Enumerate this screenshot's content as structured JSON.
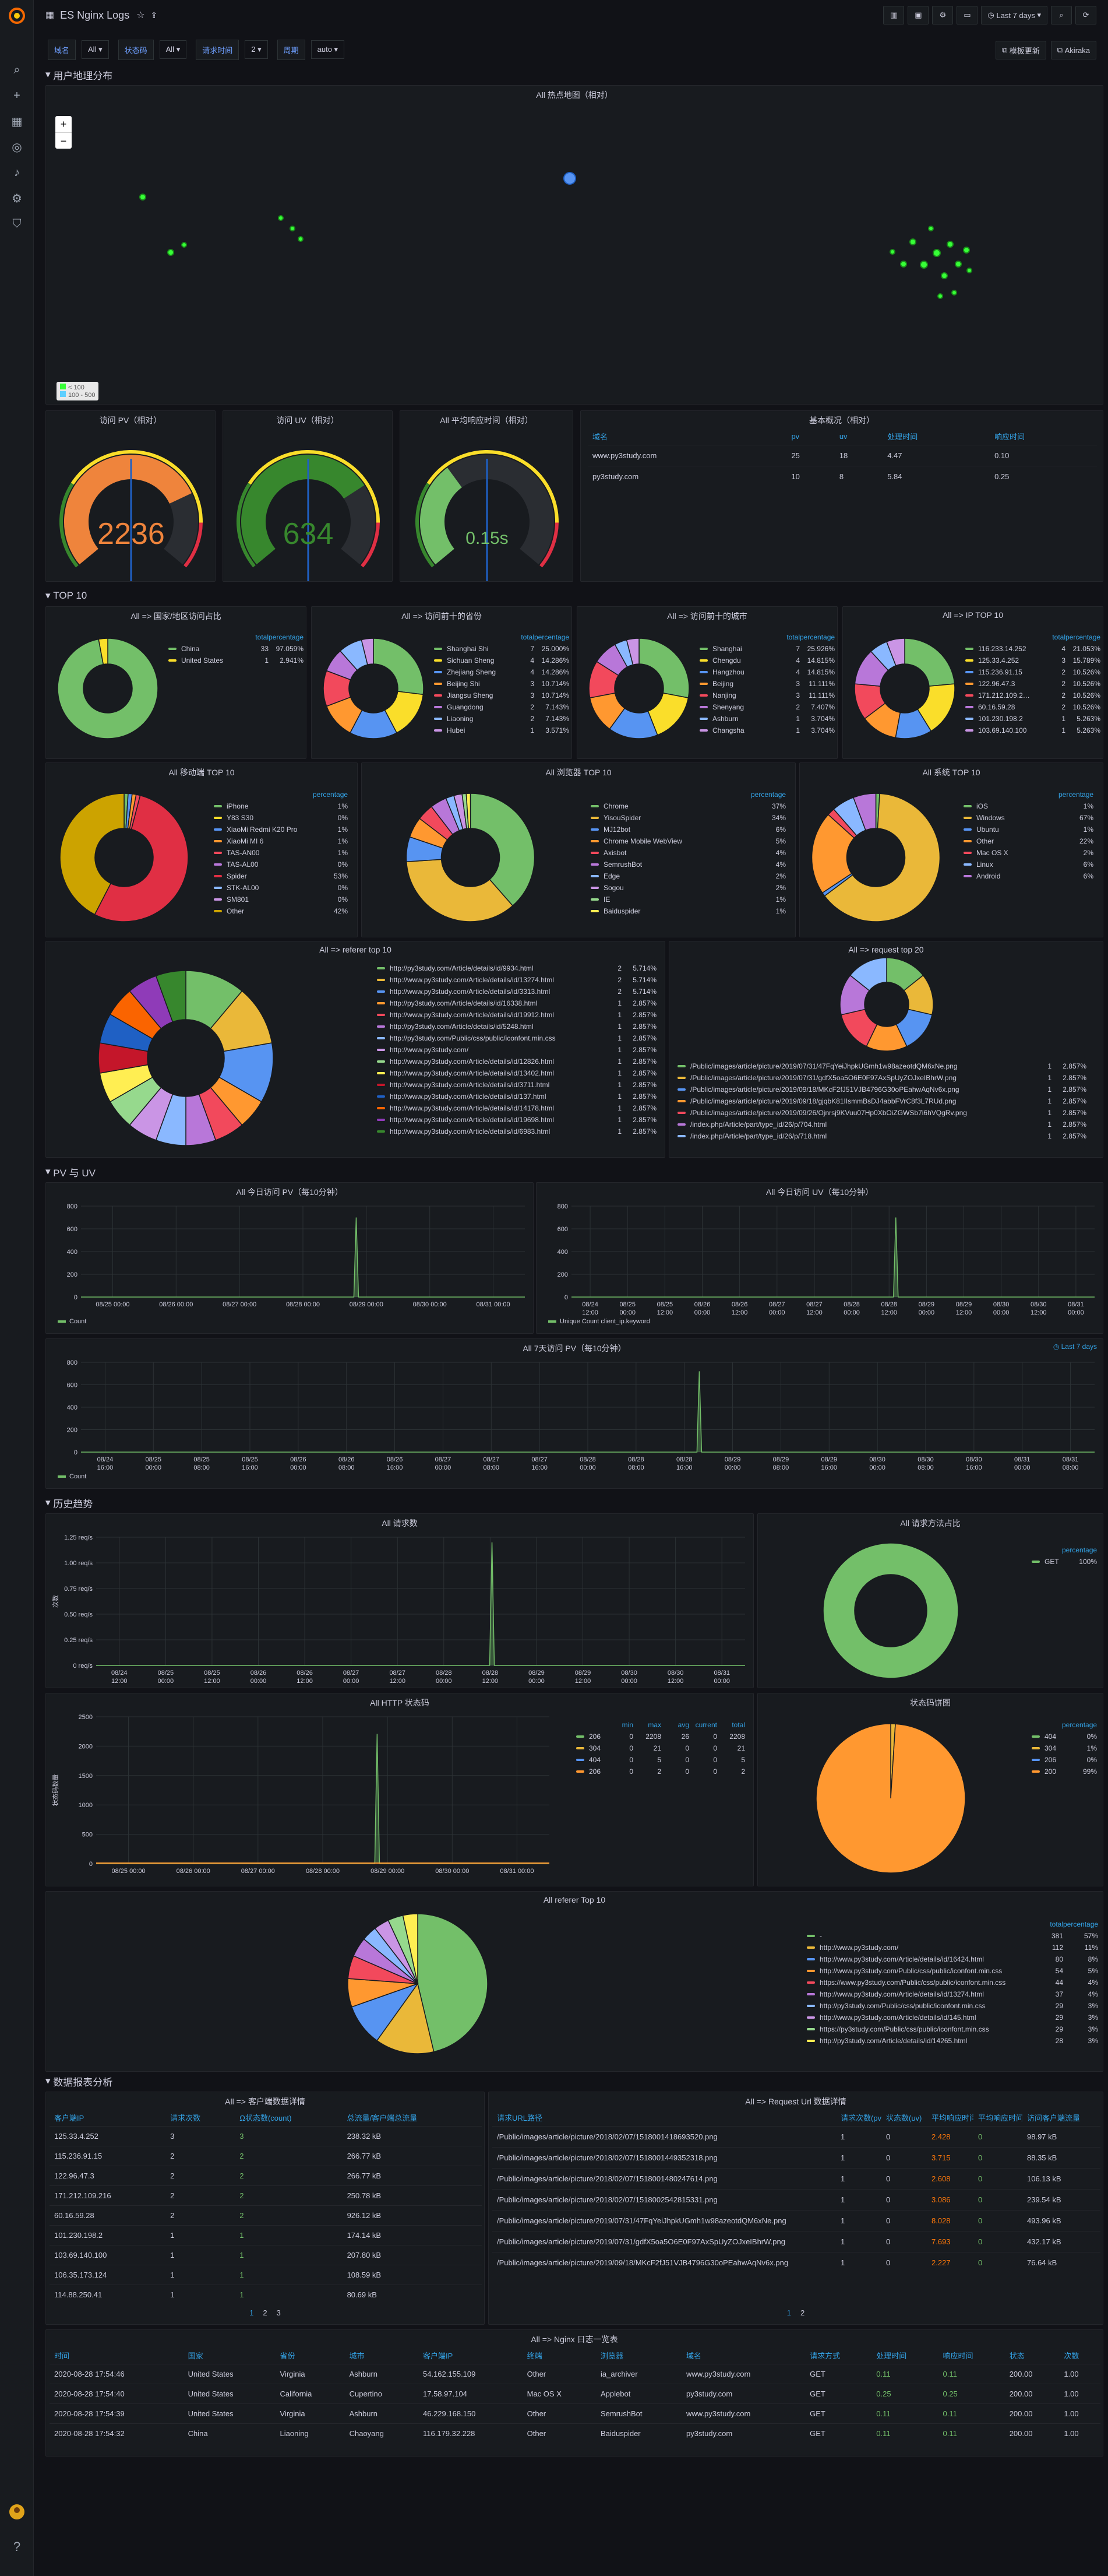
{
  "app": {
    "title": "ES Nginx Logs",
    "time_range": "Last 7 days",
    "btn_dash": "模板更新",
    "btn_akiraka": "Akiraka"
  },
  "sidebar": {
    "icons": [
      "grafana-logo-icon",
      "search-icon",
      "plus-icon",
      "dashboards-icon",
      "explore-icon",
      "alerting-icon",
      "config-icon",
      "shield-icon"
    ]
  },
  "variables": [
    {
      "label": "域名",
      "value": "All"
    },
    {
      "label": "状态码",
      "value": "All"
    },
    {
      "label": "请求时间",
      "value": "2"
    },
    {
      "label": "周期",
      "value": "auto"
    }
  ],
  "rows": {
    "geo": "用户地理分布",
    "top10": "TOP 10",
    "pvuv": "PV 与 UV",
    "history": "历史趋势",
    "report": "数据报表分析"
  },
  "map": {
    "title": "All 热点地图（相对）",
    "zoom_in": "+",
    "zoom_out": "−",
    "legend": [
      "< 100",
      "100 - 500"
    ]
  },
  "gauges": [
    {
      "title": "访问 PV（相对）",
      "value": "2236",
      "fraction": 0.75,
      "color": "#ef843c"
    },
    {
      "title": "访问 UV（相对）",
      "value": "634",
      "fraction": 0.72,
      "color": "#37872d"
    },
    {
      "title": "All 平均响应时间（相对）",
      "value": "0.15s",
      "fraction": 0.36,
      "color": "#73bf69"
    }
  ],
  "overview": {
    "title": "基本概况（相对）",
    "columns": [
      "域名",
      "pv",
      "uv",
      "处理时间",
      "响应时间"
    ],
    "rows": [
      [
        "www.py3study.com",
        "25",
        "18",
        "4.47",
        "0.10"
      ],
      [
        "py3study.com",
        "10",
        "8",
        "5.84",
        "0.25"
      ]
    ]
  },
  "pies_top10": [
    {
      "title": "All => 国家/地区访问占比",
      "cols": [
        "total",
        "percentage"
      ],
      "items": [
        [
          "China",
          "33",
          "97.059%",
          "#73bf69"
        ],
        [
          "United States",
          "1",
          "2.941%",
          "#fade2a"
        ]
      ]
    },
    {
      "title": "All => 访问前十的省份",
      "cols": [
        "total",
        "percentage"
      ],
      "items": [
        [
          "Shanghai Shi",
          "7",
          "25.000%",
          "#73bf69"
        ],
        [
          "Sichuan Sheng",
          "4",
          "14.286%",
          "#fade2a"
        ],
        [
          "Zhejiang Sheng",
          "4",
          "14.286%",
          "#5794f2"
        ],
        [
          "Beijing Shi",
          "3",
          "10.714%",
          "#ff9830"
        ],
        [
          "Jiangsu Sheng",
          "3",
          "10.714%",
          "#f2495c"
        ],
        [
          "Guangdong",
          "2",
          "7.143%",
          "#b877d9"
        ],
        [
          "Liaoning",
          "2",
          "7.143%",
          "#8ab8ff"
        ],
        [
          "Hubei",
          "1",
          "3.571%",
          "#ca95e5"
        ]
      ]
    },
    {
      "title": "All => 访问前十的城市",
      "cols": [
        "total",
        "percentage"
      ],
      "items": [
        [
          "Shanghai",
          "7",
          "25.926%",
          "#73bf69"
        ],
        [
          "Chengdu",
          "4",
          "14.815%",
          "#fade2a"
        ],
        [
          "Hangzhou",
          "4",
          "14.815%",
          "#5794f2"
        ],
        [
          "Beijing",
          "3",
          "11.111%",
          "#ff9830"
        ],
        [
          "Nanjing",
          "3",
          "11.111%",
          "#f2495c"
        ],
        [
          "Shenyang",
          "2",
          "7.407%",
          "#b877d9"
        ],
        [
          "Ashburn",
          "1",
          "3.704%",
          "#8ab8ff"
        ],
        [
          "Changsha",
          "1",
          "3.704%",
          "#ca95e5"
        ]
      ]
    },
    {
      "title": "All => IP TOP 10",
      "cols": [
        "total",
        "percentage"
      ],
      "items": [
        [
          "116.233.14.252",
          "4",
          "21.053%",
          "#73bf69"
        ],
        [
          "125.33.4.252",
          "3",
          "15.789%",
          "#fade2a"
        ],
        [
          "115.236.91.15",
          "2",
          "10.526%",
          "#5794f2"
        ],
        [
          "122.96.47.3",
          "2",
          "10.526%",
          "#ff9830"
        ],
        [
          "171.212.109.216",
          "2",
          "10.526%",
          "#f2495c"
        ],
        [
          "60.16.59.28",
          "2",
          "10.526%",
          "#b877d9"
        ],
        [
          "101.230.198.2",
          "1",
          "5.263%",
          "#8ab8ff"
        ],
        [
          "103.69.140.100",
          "1",
          "5.263%",
          "#ca95e5"
        ]
      ]
    }
  ],
  "pies_row3": [
    {
      "title": "All 移动端 TOP 10",
      "cols": [
        "percentage"
      ],
      "items": [
        [
          "iPhone",
          "1%",
          "#73bf69"
        ],
        [
          "Y83 S30",
          "0%",
          "#fade2a"
        ],
        [
          "XiaoMi Redmi K20 Pro",
          "1%",
          "#5794f2"
        ],
        [
          "XiaoMi MI 6",
          "1%",
          "#ff9830"
        ],
        [
          "TAS-AN00",
          "1%",
          "#f2495c"
        ],
        [
          "TAS-AL00",
          "0%",
          "#b877d9"
        ],
        [
          "Spider",
          "53%",
          "#e02f44"
        ],
        [
          "STK-AL00",
          "0%",
          "#8ab8ff"
        ],
        [
          "SM801",
          "0%",
          "#ca95e5"
        ],
        [
          "Other",
          "42%",
          "#cca300"
        ]
      ]
    },
    {
      "title": "All 浏览器 TOP 10",
      "cols": [
        "percentage"
      ],
      "items": [
        [
          "Chrome",
          "37%",
          "#73bf69"
        ],
        [
          "YisouSpider",
          "34%",
          "#eab839"
        ],
        [
          "MJ12bot",
          "6%",
          "#5794f2"
        ],
        [
          "Chrome Mobile WebView",
          "5%",
          "#ff9830"
        ],
        [
          "Axisbot",
          "4%",
          "#f2495c"
        ],
        [
          "SemrushBot",
          "4%",
          "#b877d9"
        ],
        [
          "Edge",
          "2%",
          "#8ab8ff"
        ],
        [
          "Sogou",
          "2%",
          "#ca95e5"
        ],
        [
          "IE",
          "1%",
          "#96d98d"
        ],
        [
          "Baiduspider",
          "1%",
          "#ffee52"
        ]
      ]
    },
    {
      "title": "All 系统 TOP 10",
      "cols": [
        "percentage"
      ],
      "items": [
        [
          "iOS",
          "1%",
          "#73bf69"
        ],
        [
          "Windows",
          "67%",
          "#eab839"
        ],
        [
          "Ubuntu",
          "1%",
          "#5794f2"
        ],
        [
          "Other",
          "22%",
          "#ff9830"
        ],
        [
          "Mac OS X",
          "2%",
          "#f2495c"
        ],
        [
          "Linux",
          "6%",
          "#8ab8ff"
        ],
        [
          "Android",
          "6%",
          "#b877d9"
        ]
      ]
    }
  ],
  "referer": {
    "title": "All => referer top 10",
    "items": [
      [
        "http://py3study.com/Article/details/id/9934.html",
        "2",
        "5.714%",
        "#73bf69"
      ],
      [
        "http://www.py3study.com/Article/details/id/13274.html",
        "2",
        "5.714%",
        "#eab839"
      ],
      [
        "http://www.py3study.com/Article/details/id/3313.html",
        "2",
        "5.714%",
        "#5794f2"
      ],
      [
        "http://py3study.com/Article/details/id/16338.html",
        "1",
        "2.857%",
        "#ff9830"
      ],
      [
        "http://www.py3study.com/Article/details/id/19912.html",
        "1",
        "2.857%",
        "#f2495c"
      ],
      [
        "http://py3study.com/Article/details/id/5248.html",
        "1",
        "2.857%",
        "#b877d9"
      ],
      [
        "http://py3study.com/Public/css/public/iconfont.min.css",
        "1",
        "2.857%",
        "#8ab8ff"
      ],
      [
        "http://www.py3study.com/",
        "1",
        "2.857%",
        "#ca95e5"
      ],
      [
        "http://www.py3study.com/Article/details/id/12826.html",
        "1",
        "2.857%",
        "#96d98d"
      ],
      [
        "http://www.py3study.com/Article/details/id/13402.html",
        "1",
        "2.857%",
        "#ffee52"
      ],
      [
        "http://www.py3study.com/Article/details/id/3711.html",
        "1",
        "2.857%",
        "#c4162a"
      ],
      [
        "http://www.py3study.com/Article/details/id/137.html",
        "1",
        "2.857%",
        "#1f60c4"
      ],
      [
        "http://www.py3study.com/Article/details/id/14178.html",
        "1",
        "2.857%",
        "#fa6400"
      ],
      [
        "http://www.py3study.com/Article/details/id/19698.html",
        "1",
        "2.857%",
        "#8f3bb8"
      ],
      [
        "http://www.py3study.com/Article/details/id/6983.html",
        "1",
        "2.857%",
        "#37872d"
      ]
    ]
  },
  "request_top": {
    "title": "All => request top 20",
    "items": [
      [
        "/Public/images/article/picture/2019/07/31/47FqYeiJhpkUGmh1w98azeotdQM6xNe.png",
        "1",
        "2.857%",
        "#73bf69"
      ],
      [
        "/Public/images/article/picture/2019/07/31/gdfX5oa5O6E0F97AxSpUyZOJxeIBhrW.png",
        "1",
        "2.857%",
        "#eab839"
      ],
      [
        "/Public/images/article/picture/2019/09/18/MKcF2fJ51VJB4796G30oPEahwAqNv6x.png",
        "1",
        "2.857%",
        "#5794f2"
      ],
      [
        "/Public/images/article/picture/2019/09/18/gjqbK81IIsmmBsDJ4abbFVrC8f3L7RUd.png",
        "1",
        "2.857%",
        "#ff9830"
      ],
      [
        "/Public/images/article/picture/2019/09/26/Ojnrsj9KVuu07Hp0XbOiZGWSb7i6hVQgRv.png",
        "1",
        "2.857%",
        "#f2495c"
      ],
      [
        "/index.php/Article/part/type_id/26/p/704.html",
        "1",
        "2.857%",
        "#b877d9"
      ],
      [
        "/index.php/Article/part/type_id/26/p/718.html",
        "1",
        "2.857%",
        "#8ab8ff"
      ]
    ]
  },
  "pv_today": {
    "title": "All 今日访问 PV（每10分钟）",
    "ymax": 800,
    "yticks": [
      0,
      200,
      400,
      600,
      800
    ],
    "xticks": [
      "08/25 00:00",
      "08/26 00:00",
      "08/27 00:00",
      "08/28 00:00",
      "08/29 00:00",
      "08/30 00:00",
      "08/31 00:00"
    ],
    "spike_pos": 0.62,
    "spike_value": 700,
    "legend": "Count"
  },
  "uv_today": {
    "title": "All 今日访问 UV（每10分钟）",
    "ymax": 800,
    "yticks": [
      0,
      200,
      400,
      600,
      800
    ],
    "xticks": [
      "08/24 12:00",
      "08/25 00:00",
      "08/25 12:00",
      "08/26 00:00",
      "08/26 12:00",
      "08/27 00:00",
      "08/27 12:00",
      "08/28 00:00",
      "08/28 12:00",
      "08/29 00:00",
      "08/29 12:00",
      "08/30 00:00",
      "08/30 12:00",
      "08/31 00:00"
    ],
    "spike_pos": 0.62,
    "spike_value": 700,
    "legend": "Unique Count client_ip.keyword"
  },
  "pv_7d": {
    "title": "All 7天访问 PV（每10分钟）",
    "badge": "Last 7 days",
    "ymax": 800,
    "yticks": [
      0,
      200,
      400,
      600,
      800
    ],
    "xticks": [
      "08/24 16:00",
      "08/25 00:00",
      "08/25 08:00",
      "08/25 16:00",
      "08/26 00:00",
      "08/26 08:00",
      "08/26 16:00",
      "08/27 00:00",
      "08/27 08:00",
      "08/27 16:00",
      "08/28 00:00",
      "08/28 08:00",
      "08/28 16:00",
      "08/29 00:00",
      "08/29 08:00",
      "08/29 16:00",
      "08/30 00:00",
      "08/30 08:00",
      "08/30 16:00",
      "08/31 00:00",
      "08/31 08:00"
    ],
    "spike_pos": 0.61,
    "spike_value": 720,
    "legend": "Count"
  },
  "req_count": {
    "title": "All 请求数",
    "ylabel": "次数",
    "ymax": 1.25,
    "ytick_labels": [
      "0 req/s",
      "0.25 req/s",
      "0.50 req/s",
      "0.75 req/s",
      "1.00 req/s",
      "1.25 req/s"
    ],
    "xticks": [
      "08/24 12:00",
      "08/25 00:00",
      "08/25 12:00",
      "08/26 00:00",
      "08/26 12:00",
      "08/27 00:00",
      "08/27 12:00",
      "08/28 00:00",
      "08/28 12:00",
      "08/29 00:00",
      "08/29 12:00",
      "08/30 00:00",
      "08/30 12:00",
      "08/31 00:00"
    ],
    "spike_pos": 0.61,
    "spike_value": 1.2
  },
  "method_pie": {
    "title": "All 请求方法占比",
    "cols": [
      "percentage"
    ],
    "items": [
      [
        "GET",
        "100%",
        "#73bf69"
      ]
    ]
  },
  "http_status": {
    "title": "All HTTP 状态码",
    "ylabel": "状态码数量",
    "ymax": 2500,
    "yticks": [
      0,
      500,
      1000,
      1500,
      2000,
      2500
    ],
    "xticks": [
      "08/25 00:00",
      "08/26 00:00",
      "08/27 00:00",
      "08/28 00:00",
      "08/29 00:00",
      "08/30 00:00",
      "08/31 00:00"
    ],
    "spike_pos": 0.62,
    "spike_value": 2208,
    "cols": [
      "min",
      "max",
      "avg",
      "current",
      "total"
    ],
    "series": [
      [
        "206",
        "0",
        "2208",
        "26",
        "0",
        "2208",
        "#73bf69"
      ],
      [
        "304",
        "0",
        "21",
        "0",
        "0",
        "21",
        "#eab839"
      ],
      [
        "404",
        "0",
        "5",
        "0",
        "0",
        "5",
        "#5794f2"
      ],
      [
        "206",
        "0",
        "2",
        "0",
        "0",
        "2",
        "#ff9830"
      ]
    ]
  },
  "status_pie": {
    "title": "状态码饼图",
    "cols": [
      "percentage"
    ],
    "items": [
      [
        "404",
        "0%",
        "#73bf69"
      ],
      [
        "304",
        "1%",
        "#eab839"
      ],
      [
        "206",
        "0%",
        "#5794f2"
      ],
      [
        "200",
        "99%",
        "#ff9830"
      ]
    ]
  },
  "referer_all": {
    "title": "All referer Top 10",
    "cols": [
      "total",
      "percentage"
    ],
    "items": [
      [
        "-",
        "381",
        "57%",
        "#73bf69"
      ],
      [
        "http://www.py3study.com/",
        "112",
        "11%",
        "#eab839"
      ],
      [
        "http://www.py3study.com/Article/details/id/16424.html",
        "80",
        "8%",
        "#5794f2"
      ],
      [
        "http://www.py3study.com/Public/css/public/iconfont.min.css",
        "54",
        "5%",
        "#ff9830"
      ],
      [
        "https://www.py3study.com/Public/css/public/iconfont.min.css",
        "44",
        "4%",
        "#f2495c"
      ],
      [
        "http://www.py3study.com/Article/details/id/13274.html",
        "37",
        "4%",
        "#b877d9"
      ],
      [
        "http://py3study.com/Public/css/public/iconfont.min.css",
        "29",
        "3%",
        "#8ab8ff"
      ],
      [
        "http://www.py3study.com/Article/details/id/145.html",
        "29",
        "3%",
        "#ca95e5"
      ],
      [
        "https://py3study.com/Public/css/public/iconfont.min.css",
        "29",
        "3%",
        "#96d98d"
      ],
      [
        "http://py3study.com/Article/details/id/14265.html",
        "28",
        "3%",
        "#ffee52"
      ]
    ]
  },
  "client_table": {
    "title": "All => 客户端数据详情",
    "cols": [
      "客户端IP",
      "请求次数",
      "Ω状态数(count)",
      "总流量/客户端总流量"
    ],
    "rows": [
      [
        "125.33.4.252",
        "3",
        "3",
        "238.32 kB"
      ],
      [
        "115.236.91.15",
        "2",
        "2",
        "266.77 kB"
      ],
      [
        "122.96.47.3",
        "2",
        "2",
        "266.77 kB"
      ],
      [
        "171.212.109.216",
        "2",
        "2",
        "250.78 kB"
      ],
      [
        "60.16.59.28",
        "2",
        "2",
        "926.12 kB"
      ],
      [
        "101.230.198.2",
        "1",
        "1",
        "174.14 kB"
      ],
      [
        "103.69.140.100",
        "1",
        "1",
        "207.80 kB"
      ],
      [
        "106.35.173.124",
        "1",
        "1",
        "108.59 kB"
      ],
      [
        "114.88.250.41",
        "1",
        "1",
        "80.69 kB"
      ]
    ],
    "pages": [
      "1",
      "2",
      "3"
    ]
  },
  "url_table": {
    "title": "All => Request Url 数据详情",
    "cols": [
      "请求URL路径",
      "请求次数(pv)",
      "状态数(uv)",
      "平均响应时间",
      "平均响应时间(秒)",
      "访问客户端流量"
    ],
    "rows": [
      [
        "/Public/images/article/picture/2018/02/07/1518001418693520.png",
        "1",
        "0",
        "2.428",
        "0",
        "98.97 kB"
      ],
      [
        "/Public/images/article/picture/2018/02/07/1518001449352318.png",
        "1",
        "0",
        "3.715",
        "0",
        "88.35 kB"
      ],
      [
        "/Public/images/article/picture/2018/02/07/1518001480247614.png",
        "1",
        "0",
        "2.608",
        "0",
        "106.13 kB"
      ],
      [
        "/Public/images/article/picture/2018/02/07/1518002542815331.png",
        "1",
        "0",
        "3.086",
        "0",
        "239.54 kB"
      ],
      [
        "/Public/images/article/picture/2019/07/31/47FqYeiJhpkUGmh1w98azeotdQM6xNe.png",
        "1",
        "0",
        "8.028",
        "0",
        "493.96 kB"
      ],
      [
        "/Public/images/article/picture/2019/07/31/gdfX5oa5O6E0F97AxSpUyZOJxeIBhrW.png",
        "1",
        "0",
        "7.693",
        "0",
        "432.17 kB"
      ],
      [
        "/Public/images/article/picture/2019/09/18/MKcF2fJ51VJB4796G30oPEahwAqNv6x.png",
        "1",
        "0",
        "2.227",
        "0",
        "76.64 kB"
      ]
    ],
    "pages": [
      "1",
      "2"
    ]
  },
  "log_table": {
    "title": "All => Nginx 日志一览表",
    "cols": [
      "时间",
      "国家",
      "省份",
      "城市",
      "客户端IP",
      "终端",
      "浏览器",
      "域名",
      "请求方式",
      "处理时间",
      "响应时间",
      "状态",
      "次数"
    ],
    "rows": [
      [
        "2020-08-28 17:54:46",
        "United States",
        "Virginia",
        "Ashburn",
        "54.162.155.109",
        "Other",
        "ia_archiver",
        "www.py3study.com",
        "GET",
        "0.11",
        "0.11",
        "200.00",
        "1.00"
      ],
      [
        "2020-08-28 17:54:40",
        "United States",
        "California",
        "Cupertino",
        "17.58.97.104",
        "Mac OS X",
        "Applebot",
        "py3study.com",
        "GET",
        "0.25",
        "0.25",
        "200.00",
        "1.00"
      ],
      [
        "2020-08-28 17:54:39",
        "United States",
        "Virginia",
        "Ashburn",
        "46.229.168.150",
        "Other",
        "SemrushBot",
        "www.py3study.com",
        "GET",
        "0.11",
        "0.11",
        "200.00",
        "1.00"
      ],
      [
        "2020-08-28 17:54:32",
        "China",
        "Liaoning",
        "Chaoyang",
        "116.179.32.228",
        "Other",
        "Baiduspider",
        "py3study.com",
        "GET",
        "0.11",
        "0.11",
        "200.00",
        "1.00"
      ]
    ]
  }
}
